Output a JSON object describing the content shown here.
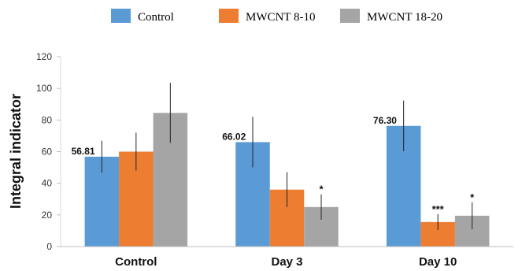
{
  "chart_data": {
    "type": "bar",
    "categories": [
      "Control",
      "Day 3",
      "Day 10"
    ],
    "ylabel": "Integral indicator",
    "xlabel": "",
    "ylim": [
      0,
      120
    ],
    "yticks": [
      0,
      20,
      40,
      60,
      80,
      100,
      120
    ],
    "grid": false,
    "legend_position": "top",
    "series": [
      {
        "name": "Control",
        "color": "#5B9BD5",
        "values": [
          56.81,
          66.02,
          76.3
        ],
        "errors": [
          10,
          16,
          16
        ],
        "data_labels": [
          "56.81",
          "66.02",
          "76.30"
        ],
        "significance": [
          "",
          "",
          ""
        ]
      },
      {
        "name": "MWCNT 8-10",
        "color": "#ED7D31",
        "values": [
          60,
          36,
          15.5
        ],
        "errors": [
          12,
          11,
          5
        ],
        "data_labels": [
          "",
          "",
          ""
        ],
        "significance": [
          "",
          "",
          "***"
        ]
      },
      {
        "name": "MWCNT 18-20",
        "color": "#A5A5A5",
        "values": [
          84.5,
          25,
          19.5
        ],
        "errors": [
          19,
          8,
          8.5
        ],
        "data_labels": [
          "",
          "",
          ""
        ],
        "significance": [
          "",
          "*",
          "*"
        ]
      }
    ]
  }
}
